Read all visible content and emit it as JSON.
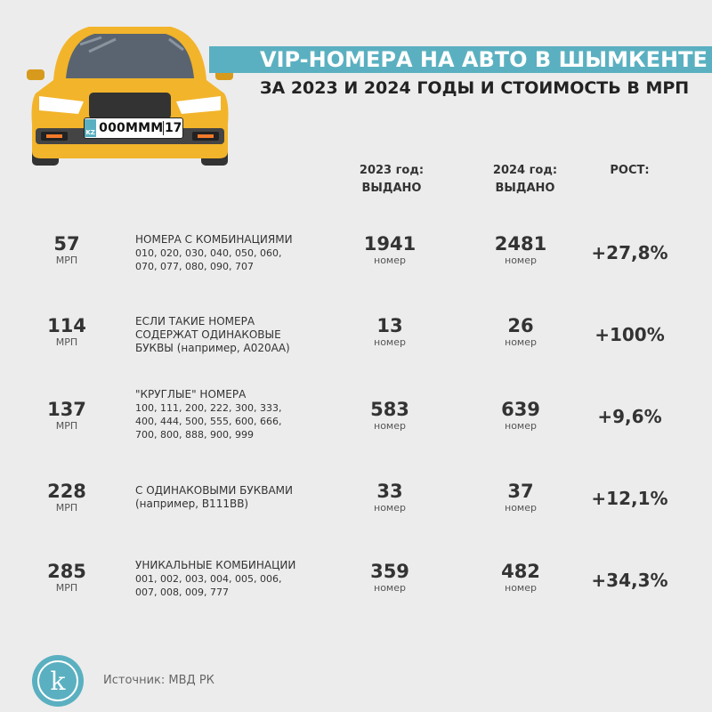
{
  "header": {
    "title": "VIP-НОМЕРА НА АВТО В ШЫМКЕНТЕ",
    "subtitle": "ЗА 2023 И 2024 ГОДЫ И СТОИМОСТЬ В МРП"
  },
  "plate": {
    "country": "KZ",
    "number": "000MMM",
    "region": "17"
  },
  "columns": {
    "y2023_line1": "2023 год:",
    "y2023_line2": "ВЫДАНО",
    "y2024_line1": "2024 год:",
    "y2024_line2": "ВЫДАНО",
    "growth": "РОСТ:"
  },
  "rows": [
    {
      "price": "57",
      "price_unit": "МРП",
      "title": "НОМЕРА С КОМБИНАЦИЯМИ",
      "lines": [
        "010, 020, 030, 040, 050, 060,",
        "070, 077, 080, 090, 707"
      ],
      "c2023": "1941",
      "c2024": "2481",
      "unit": "номер",
      "growth": "+27,8%"
    },
    {
      "price": "114",
      "price_unit": "МРП",
      "title": "ЕСЛИ ТАКИЕ НОМЕРА",
      "lines": [
        "СОДЕРЖАТ ОДИНАКОВЫЕ",
        "БУКВЫ (например, А020АА)"
      ],
      "c2023": "13",
      "c2024": "26",
      "unit": "номер",
      "growth": "+100%"
    },
    {
      "price": "137",
      "price_unit": "МРП",
      "title": "\"КРУГЛЫЕ\" НОМЕРА",
      "lines": [
        "100, 111, 200, 222, 300, 333,",
        "400, 444, 500, 555, 600, 666,",
        "700, 800, 888, 900, 999"
      ],
      "c2023": "583",
      "c2024": "639",
      "unit": "номер",
      "growth": "+9,6%"
    },
    {
      "price": "228",
      "price_unit": "МРП",
      "title": "С ОДИНАКОВЫМИ БУКВАМИ",
      "lines": [
        "(например, В111ВВ)"
      ],
      "c2023": "33",
      "c2024": "37",
      "unit": "номер",
      "growth": "+12,1%"
    },
    {
      "price": "285",
      "price_unit": "МРП",
      "title": "УНИКАЛЬНЫЕ КОМБИНАЦИИ",
      "lines": [
        "001, 002, 003, 004, 005, 006,",
        "007, 008, 009, 777"
      ],
      "c2023": "359",
      "c2024": "482",
      "unit": "номер",
      "growth": "+34,3%"
    }
  ],
  "footer": {
    "logo_letter": "k",
    "source": "Источник: МВД РК"
  },
  "colors": {
    "accent": "#5ab0c0",
    "car_body": "#f2b42a",
    "background": "#ececec"
  }
}
